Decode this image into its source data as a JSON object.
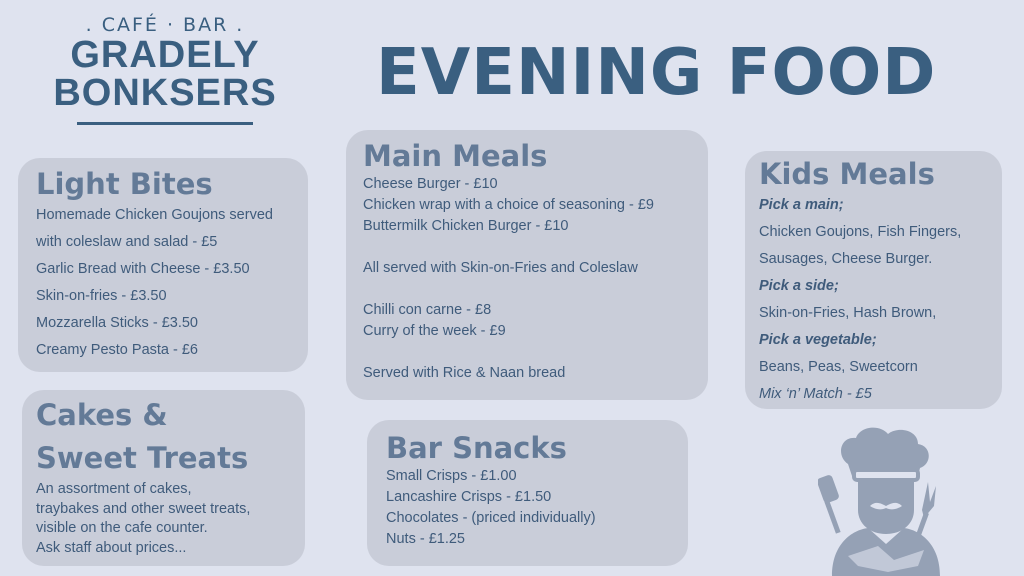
{
  "logo": {
    "sub": ". CAFÉ · BAR .",
    "line1": "GRADELY",
    "line2": "BONKSERS"
  },
  "title": "EVENING FOOD",
  "light_bites": {
    "heading": "Light Bites",
    "items": [
      "Homemade Chicken Goujons served",
      "with coleslaw and salad - £5",
      "Garlic Bread with Cheese - £3.50",
      "Skin-on-fries - £3.50",
      "Mozzarella Sticks - £3.50",
      "Creamy Pesto Pasta - £6"
    ]
  },
  "cakes": {
    "heading1": "Cakes &",
    "heading2": "Sweet Treats",
    "items": [
      "An assortment of cakes,",
      "traybakes and other sweet treats,",
      "visible on the cafe counter.",
      "Ask staff about prices..."
    ]
  },
  "main_meals": {
    "heading": "Main Meals",
    "items": [
      "Cheese Burger  - £10",
      "Chicken wrap with a choice of seasoning - £9",
      "Buttermilk Chicken Burger - £10",
      "",
      "All served with Skin-on-Fries and Coleslaw",
      "",
      "Chilli con carne - £8",
      "Curry of the week - £9",
      "",
      "Served with Rice & Naan bread"
    ]
  },
  "bar_snacks": {
    "heading": "Bar Snacks",
    "items": [
      "Small Crisps - £1.00",
      "Lancashire Crisps - £1.50",
      "Chocolates - (priced individually)",
      "Nuts - £1.25"
    ]
  },
  "kids_meals": {
    "heading": "Kids Meals",
    "pick_main": "Pick a main;",
    "mains1": "Chicken Goujons, Fish Fingers,",
    "mains2": "Sausages, Cheese Burger.",
    "pick_side": "Pick a side;",
    "sides": "Skin-on-Fries, Hash Brown,",
    "pick_veg": "Pick a vegetable;",
    "veg": "Beans, Peas, Sweetcorn",
    "price": "Mix ‘n’ Match - £5"
  },
  "colors": {
    "background": "#dfe3ef",
    "box": "#c9cdd9",
    "brand": "#3a5f80",
    "heading": "#637a97"
  },
  "icons": {
    "chef": "chef-icon"
  }
}
